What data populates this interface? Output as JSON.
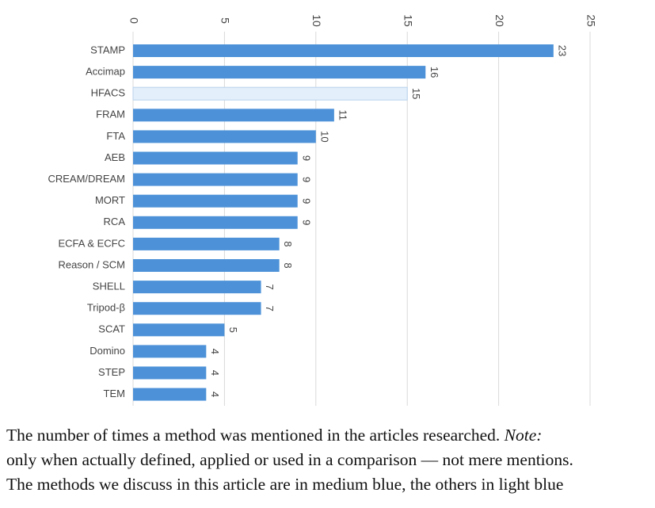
{
  "chart_data": {
    "type": "bar",
    "orientation": "horizontal",
    "categories": [
      "STAMP",
      "Accimap",
      "HFACS",
      "FRAM",
      "FTA",
      "AEB",
      "CREAM/DREAM",
      "MORT",
      "RCA",
      "ECFA & ECFC",
      "Reason / SCM",
      "SHELL",
      "Tripod-β",
      "SCAT",
      "Domino",
      "STEP",
      "TEM"
    ],
    "values": [
      23,
      16,
      15,
      11,
      10,
      9,
      9,
      9,
      9,
      8,
      8,
      7,
      7,
      5,
      4,
      4,
      4
    ],
    "colors": [
      "#4d92d8",
      "#4d92d8",
      "#e3effa",
      "#4d92d8",
      "#4d92d8",
      "#4d92d8",
      "#4d92d8",
      "#4d92d8",
      "#4d92d8",
      "#4d92d8",
      "#4d92d8",
      "#4d92d8",
      "#4d92d8",
      "#4d92d8",
      "#4d92d8",
      "#4d92d8",
      "#4d92d8"
    ],
    "xlim": [
      0,
      25
    ],
    "xticks": [
      0,
      5,
      10,
      15,
      20,
      25
    ],
    "grid": true
  },
  "caption": {
    "line1": "The number of times a method was mentioned in the articles researched.",
    "note": "Note:",
    "line2": "only when actually defined, applied or used in a comparison — not mere mentions.",
    "line3": "The methods we discuss in this article are in medium blue, the others in light blue"
  }
}
